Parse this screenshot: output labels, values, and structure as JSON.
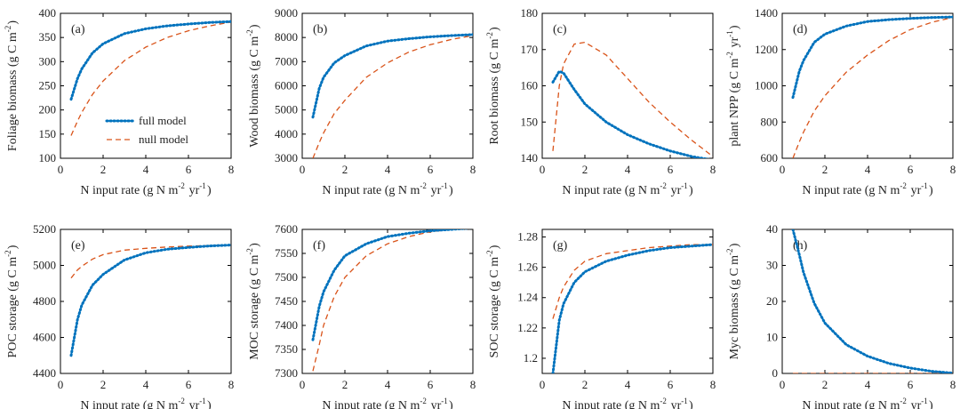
{
  "colors": {
    "full": "#0072BD",
    "null": "#D95319",
    "axis": "#000000"
  },
  "legend": {
    "full": "full model",
    "null": "null model"
  },
  "chart_data": [
    {
      "type": "line",
      "label": "(a)",
      "ylabel": "Foliage biomass (g C m^-2)",
      "xlabel": "N input rate (g N m^-2 yr^-1)",
      "xlim": [
        0,
        8
      ],
      "ylim": [
        100,
        400
      ],
      "xticks": [
        0,
        2,
        4,
        6,
        8
      ],
      "yticks": [
        100,
        150,
        200,
        250,
        300,
        350,
        400
      ],
      "legend": true,
      "legend_position": "center-left",
      "x": [
        0.5,
        0.8,
        1,
        1.5,
        2,
        3,
        4,
        5,
        6,
        7,
        8
      ],
      "series": [
        {
          "name": "full model",
          "values": [
            222,
            265,
            285,
            318,
            337,
            358,
            368,
            374,
            378,
            381,
            383
          ]
        },
        {
          "name": "null model",
          "values": [
            147,
            177,
            195,
            232,
            260,
            302,
            330,
            350,
            364,
            374,
            382
          ]
        }
      ]
    },
    {
      "type": "line",
      "label": "(b)",
      "ylabel": "Wood biomass (g C m^-2)",
      "xlabel": "N input rate (g N m^-2 yr^-1)",
      "xlim": [
        0,
        8
      ],
      "ylim": [
        3000,
        9000
      ],
      "xticks": [
        0,
        2,
        4,
        6,
        8
      ],
      "yticks": [
        3000,
        4000,
        5000,
        6000,
        7000,
        8000,
        9000
      ],
      "x": [
        0.5,
        0.8,
        1,
        1.5,
        2,
        3,
        4,
        5,
        6,
        7,
        8
      ],
      "series": [
        {
          "name": "full model",
          "values": [
            4700,
            5900,
            6350,
            6950,
            7250,
            7650,
            7850,
            7950,
            8030,
            8080,
            8120
          ]
        },
        {
          "name": "null model",
          "values": [
            3000,
            3650,
            4050,
            4850,
            5400,
            6350,
            6950,
            7400,
            7700,
            7920,
            8080
          ]
        }
      ]
    },
    {
      "type": "line",
      "label": "(c)",
      "ylabel": "Root biomass (g C m^-2)",
      "xlabel": "N input rate (g N m^-2 yr^-1)",
      "xlim": [
        0,
        8
      ],
      "ylim": [
        140,
        180
      ],
      "xticks": [
        0,
        2,
        4,
        6,
        8
      ],
      "yticks": [
        140,
        150,
        160,
        170,
        180
      ],
      "x": [
        0.5,
        0.8,
        1,
        1.5,
        2,
        3,
        4,
        5,
        6,
        7,
        8
      ],
      "series": [
        {
          "name": "full model",
          "values": [
            161,
            164,
            163.5,
            159,
            155,
            150,
            146.5,
            144,
            142,
            140.5,
            139.5
          ]
        },
        {
          "name": "null model",
          "values": [
            142,
            160,
            166,
            171.5,
            172,
            168.5,
            162,
            155.5,
            150,
            145,
            140.5
          ]
        }
      ]
    },
    {
      "type": "line",
      "label": "(d)",
      "ylabel": "plant NPP (g C m^-2 yr^-1)",
      "xlabel": "N input rate (g N m^-2 yr^-1)",
      "xlim": [
        0,
        8
      ],
      "ylim": [
        600,
        1400
      ],
      "xticks": [
        0,
        2,
        4,
        6,
        8
      ],
      "yticks": [
        600,
        800,
        1000,
        1200,
        1400
      ],
      "x": [
        0.5,
        0.8,
        1,
        1.5,
        2,
        3,
        4,
        5,
        6,
        7,
        8
      ],
      "series": [
        {
          "name": "full model",
          "values": [
            935,
            1080,
            1140,
            1240,
            1285,
            1330,
            1355,
            1365,
            1372,
            1377,
            1380
          ]
        },
        {
          "name": "null model",
          "values": [
            600,
            690,
            745,
            860,
            945,
            1075,
            1170,
            1250,
            1310,
            1350,
            1378
          ]
        }
      ]
    },
    {
      "type": "line",
      "label": "(e)",
      "ylabel": "POC storage (g C m^-2)",
      "xlabel": "N input rate (g N m^-2 yr^-1)",
      "xlim": [
        0,
        8
      ],
      "ylim": [
        4400,
        5200
      ],
      "xticks": [
        0,
        2,
        4,
        6,
        8
      ],
      "yticks": [
        4400,
        4600,
        4800,
        5000,
        5200
      ],
      "x": [
        0.5,
        0.8,
        1,
        1.5,
        2,
        3,
        4,
        5,
        6,
        7,
        8
      ],
      "series": [
        {
          "name": "full model",
          "values": [
            4500,
            4700,
            4780,
            4890,
            4950,
            5030,
            5070,
            5090,
            5100,
            5108,
            5113
          ]
        },
        {
          "name": "null model",
          "values": [
            4930,
            4975,
            4995,
            5035,
            5060,
            5085,
            5095,
            5102,
            5107,
            5110,
            5113
          ]
        }
      ]
    },
    {
      "type": "line",
      "label": "(f)",
      "ylabel": "MOC storage (g C m^-2)",
      "xlabel": "N input rate (g N m^-2 yr^-1)",
      "xlim": [
        0,
        8
      ],
      "ylim": [
        7300,
        7600
      ],
      "xticks": [
        0,
        2,
        4,
        6,
        8
      ],
      "yticks": [
        7300,
        7350,
        7400,
        7450,
        7500,
        7550,
        7600
      ],
      "x": [
        0.5,
        0.8,
        1,
        1.5,
        2,
        3,
        4,
        5,
        6,
        7,
        8
      ],
      "series": [
        {
          "name": "full model",
          "values": [
            7370,
            7440,
            7470,
            7515,
            7545,
            7570,
            7585,
            7592,
            7597,
            7600,
            7603
          ]
        },
        {
          "name": "null model",
          "values": [
            7305,
            7360,
            7400,
            7460,
            7500,
            7545,
            7570,
            7585,
            7595,
            7600,
            7603
          ]
        }
      ]
    },
    {
      "type": "line",
      "label": "(g)",
      "ylabel": "SOC storage (g C m^-2)",
      "xlabel": "N input rate (g N m^-2 yr^-1)",
      "xlim": [
        0,
        8
      ],
      "ylim": [
        1.19,
        1.285
      ],
      "xticks": [
        0,
        2,
        4,
        6,
        8
      ],
      "yticks": [
        1.2,
        1.22,
        1.24,
        1.26,
        1.28
      ],
      "ytickLabels": [
        "1.2",
        "1.22",
        "1.24",
        "1.26",
        "1.28"
      ],
      "x": [
        0.5,
        0.8,
        1,
        1.5,
        2,
        3,
        4,
        5,
        6,
        7,
        8
      ],
      "series": [
        {
          "name": "full model",
          "values": [
            1.19,
            1.225,
            1.236,
            1.25,
            1.257,
            1.264,
            1.268,
            1.271,
            1.273,
            1.274,
            1.275
          ]
        },
        {
          "name": "null model",
          "values": [
            1.226,
            1.24,
            1.247,
            1.258,
            1.264,
            1.269,
            1.271,
            1.273,
            1.274,
            1.275,
            1.275
          ]
        }
      ]
    },
    {
      "type": "line",
      "label": "(h)",
      "ylabel": "Myc biomass (g C m^-2)",
      "xlabel": "N input rate (g N m^-2 yr^-1)",
      "xlim": [
        0,
        8
      ],
      "ylim": [
        0,
        40
      ],
      "xticks": [
        0,
        2,
        4,
        6,
        8
      ],
      "yticks": [
        0,
        10,
        20,
        30,
        40
      ],
      "x": [
        0.5,
        0.8,
        1,
        1.5,
        2,
        3,
        4,
        5,
        6,
        7,
        8
      ],
      "series": [
        {
          "name": "full model",
          "values": [
            40,
            33,
            28,
            19.5,
            14,
            8,
            4.8,
            2.8,
            1.5,
            0.6,
            0.1
          ]
        },
        {
          "name": "null model",
          "values": [
            0,
            0,
            0,
            0,
            0,
            0,
            0,
            0,
            0,
            0,
            0
          ]
        }
      ]
    }
  ]
}
